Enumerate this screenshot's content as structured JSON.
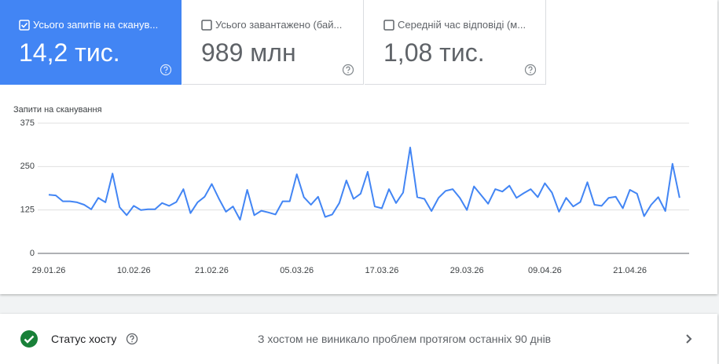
{
  "cards": [
    {
      "label": "Усього запитів на сканув...",
      "value": "14,2 тис.",
      "checked": true
    },
    {
      "label": "Усього завантажено (бай...",
      "value": "989 млн",
      "checked": false
    },
    {
      "label": "Середній час відповіді (м...",
      "value": "1,08 тис.",
      "checked": false
    }
  ],
  "chart_data": {
    "type": "line",
    "y_label": "Запити на сканування",
    "color": "#4285f4",
    "grid": true,
    "x": [
      "29.01.26",
      "30.01.26",
      "31.01.26",
      "01.02.26",
      "02.02.26",
      "03.02.26",
      "04.02.26",
      "05.02.26",
      "06.02.26",
      "07.02.26",
      "08.02.26",
      "09.02.26",
      "10.02.26",
      "11.02.26",
      "12.02.26",
      "13.02.26",
      "14.02.26",
      "15.02.26",
      "16.02.26",
      "17.02.26",
      "18.02.26",
      "19.02.26",
      "20.02.26",
      "21.02.26",
      "22.02.26",
      "23.02.26",
      "24.02.26",
      "25.02.26",
      "26.02.26",
      "27.02.26",
      "28.02.26",
      "01.03.26",
      "02.03.26",
      "03.03.26",
      "04.03.26",
      "05.03.26",
      "06.03.26",
      "07.03.26",
      "08.03.26",
      "09.03.26",
      "10.03.26",
      "11.03.26",
      "12.03.26",
      "13.03.26",
      "14.03.26",
      "15.03.26",
      "16.03.26",
      "17.03.26",
      "18.03.26",
      "19.03.26",
      "20.03.26",
      "21.03.26",
      "22.03.26",
      "23.03.26",
      "24.03.26",
      "25.03.26",
      "26.03.26",
      "27.03.26",
      "28.03.26",
      "29.03.26",
      "30.03.26",
      "31.03.26",
      "01.04.26",
      "02.04.26",
      "03.04.26",
      "04.04.26",
      "05.04.26",
      "06.04.26",
      "07.04.26",
      "08.04.26",
      "09.04.26",
      "10.04.26",
      "11.04.26",
      "12.04.26",
      "13.04.26",
      "14.04.26",
      "15.04.26",
      "16.04.26",
      "17.04.26",
      "18.04.26",
      "19.04.26",
      "20.04.26",
      "21.04.26",
      "22.04.26",
      "23.04.26",
      "24.04.26",
      "25.04.26",
      "26.04.26",
      "27.04.26",
      "28.04.26"
    ],
    "values": [
      169,
      167,
      150,
      150,
      147,
      140,
      127,
      160,
      147,
      230,
      133,
      110,
      137,
      125,
      127,
      127,
      145,
      137,
      148,
      185,
      116,
      147,
      163,
      200,
      158,
      120,
      135,
      97,
      183,
      110,
      123,
      118,
      112,
      150,
      150,
      228,
      162,
      140,
      163,
      105,
      112,
      145,
      210,
      157,
      172,
      235,
      135,
      130,
      185,
      145,
      175,
      305,
      162,
      157,
      122,
      160,
      180,
      185,
      160,
      125,
      193,
      168,
      143,
      185,
      178,
      195,
      160,
      173,
      185,
      162,
      202,
      175,
      120,
      160,
      135,
      148,
      205,
      140,
      137,
      160,
      163,
      130,
      183,
      172,
      107,
      140,
      162,
      122,
      258,
      160
    ],
    "ylim": [
      0,
      375
    ],
    "yticks": [
      0,
      125,
      250,
      375
    ],
    "xticks": [
      "29.01.26",
      "10.02.26",
      "21.02.26",
      "05.03.26",
      "17.03.26",
      "29.03.26",
      "09.04.26",
      "21.04.26"
    ]
  },
  "host_status": {
    "label": "Статус хосту",
    "message": "З хостом не виникало проблем протягом останніх 90 днів"
  }
}
